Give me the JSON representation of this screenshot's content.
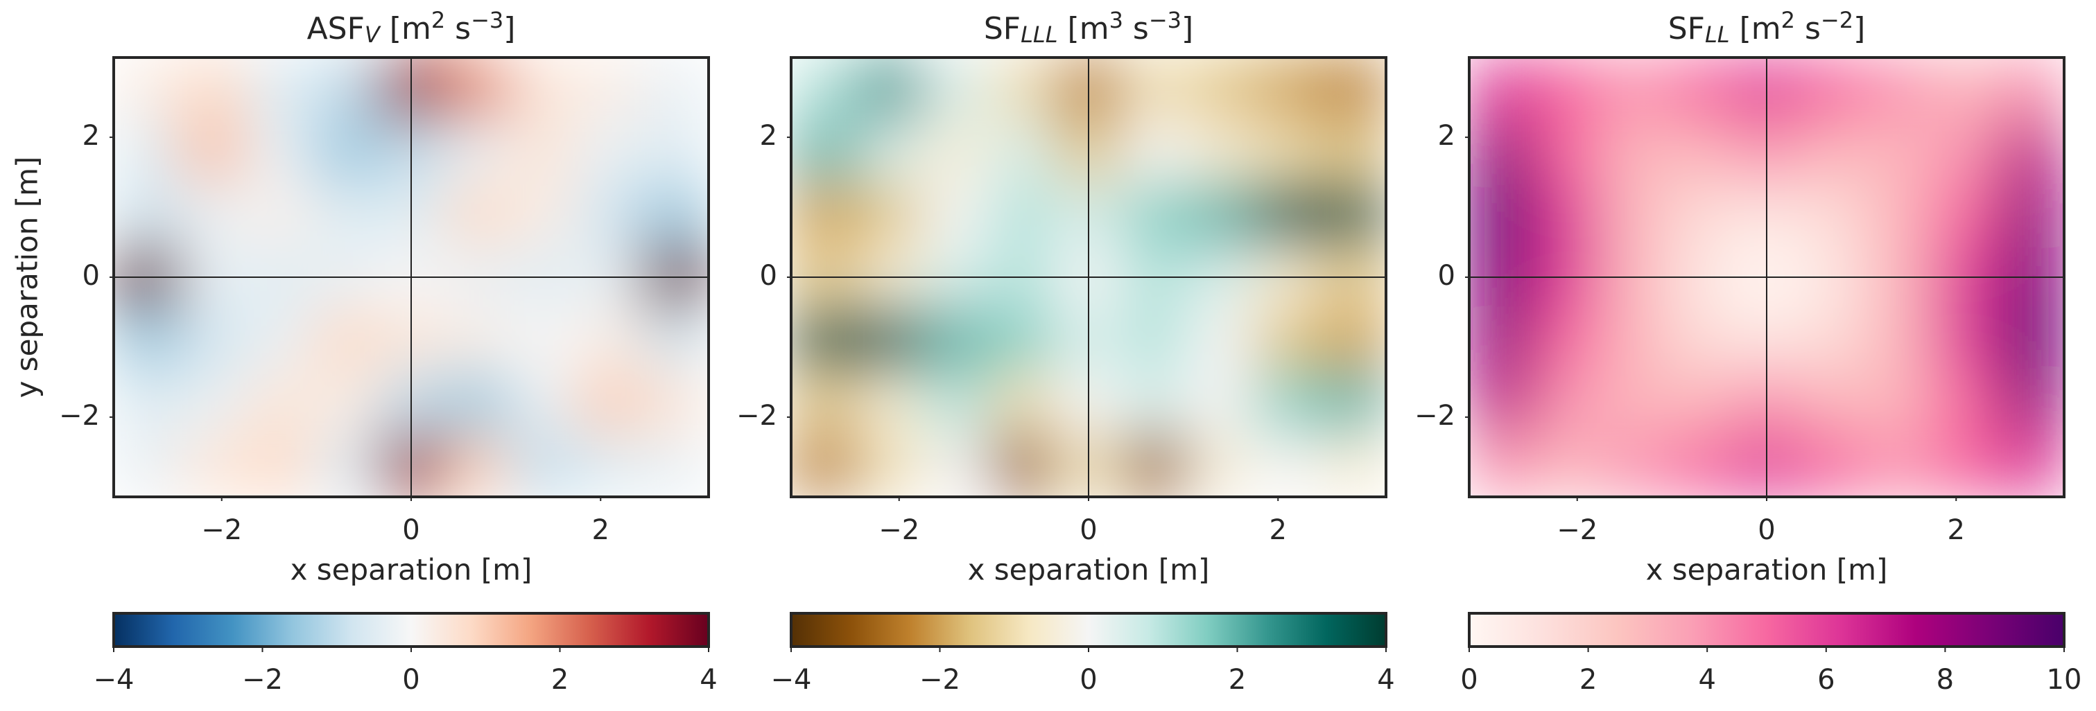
{
  "chart_data": [
    {
      "type": "heatmap",
      "title": [
        {
          "text": "ASF"
        },
        {
          "text": "V",
          "sub": true
        },
        {
          "text": " [m"
        },
        {
          "text": "2",
          "sup": true
        },
        {
          "text": " s"
        },
        {
          "text": "−3",
          "sup": true
        },
        {
          "text": "]"
        }
      ],
      "xlabel": "x separation [m]",
      "ylabel": "y separation [m]",
      "xlim": [
        -3.14,
        3.14
      ],
      "ylim": [
        -3.14,
        3.14
      ],
      "xticks": [
        {
          "value": -2,
          "label": "−2"
        },
        0,
        2
      ],
      "yticks": [
        {
          "value": -2,
          "label": "−2"
        },
        0,
        2
      ],
      "vline": 0,
      "hline": 0,
      "x": [
        -2.79,
        -2.09,
        -1.4,
        -0.7,
        0,
        0.7,
        1.4,
        2.09,
        2.79
      ],
      "y": [
        2.69,
        1.79,
        0.9,
        0,
        -0.9,
        -1.79,
        -2.69
      ],
      "z": [
        [
          0.3,
          0.8,
          -0.5,
          -1.0,
          3.5,
          2.0,
          0.5,
          0.3,
          -0.3
        ],
        [
          -0.5,
          1.2,
          -0.3,
          -1.5,
          -1.0,
          -0.3,
          0.5,
          -0.3,
          -0.5
        ],
        [
          -0.8,
          -0.3,
          0.2,
          -0.5,
          -0.5,
          0.8,
          0.3,
          -0.8,
          -1.5
        ],
        [
          4,
          -0.3,
          -0.5,
          -0.3,
          0,
          -0.3,
          -0.5,
          -0.3,
          4
        ],
        [
          -1.5,
          -0.8,
          -0.3,
          0.8,
          0.5,
          0.3,
          0,
          0.3,
          -0.8
        ],
        [
          -0.5,
          -0.3,
          0.5,
          0.3,
          -1.0,
          -1.5,
          -0.3,
          1.0,
          0.5
        ],
        [
          -0.3,
          0.5,
          0.8,
          -0.5,
          3.5,
          1.0,
          -1.0,
          -0.5,
          -0.3
        ]
      ],
      "clim": [
        -4,
        4
      ],
      "cticks": [
        {
          "value": -4,
          "label": "−4"
        },
        {
          "value": -2,
          "label": "−2"
        },
        0,
        2,
        4
      ],
      "colormap": [
        "#053061",
        "#2166ac",
        "#4393c3",
        "#92c5de",
        "#d1e5f0",
        "#f7f7f7",
        "#fddbc7",
        "#f4a582",
        "#d6604d",
        "#b2182b",
        "#67001f"
      ]
    },
    {
      "type": "heatmap",
      "title": [
        {
          "text": "SF"
        },
        {
          "text": "LLL",
          "sub": true
        },
        {
          "text": " [m"
        },
        {
          "text": "3",
          "sup": true
        },
        {
          "text": " s"
        },
        {
          "text": "−3",
          "sup": true
        },
        {
          "text": "]"
        }
      ],
      "xlabel": "x separation [m]",
      "xlim": [
        -3.14,
        3.14
      ],
      "ylim": [
        -3.14,
        3.14
      ],
      "xticks": [
        {
          "value": -2,
          "label": "−2"
        },
        0,
        2
      ],
      "yticks": [
        {
          "value": -2,
          "label": "−2"
        },
        0,
        2
      ],
      "vline": 0,
      "hline": 0,
      "x": [
        -2.79,
        -2.09,
        -1.4,
        -0.7,
        0,
        0.7,
        1.4,
        2.09,
        2.79
      ],
      "y": [
        2.69,
        1.79,
        0.9,
        0,
        -0.9,
        -1.79,
        -2.69
      ],
      "z": [
        [
          1,
          2.5,
          0.5,
          -1,
          -2.5,
          -1,
          -1.5,
          -2,
          -2.5
        ],
        [
          2,
          0.5,
          -0.5,
          0.5,
          -1.5,
          0,
          -0.5,
          -1,
          -1.5
        ],
        [
          -2,
          -1.5,
          0,
          1,
          0.5,
          1.5,
          2,
          3.5,
          3.5
        ],
        [
          -1.5,
          -0.5,
          0.5,
          1,
          0,
          1,
          0.5,
          -0.5,
          -1.5
        ],
        [
          3.5,
          3.5,
          2,
          1.5,
          0.5,
          1,
          0,
          -1.5,
          -2
        ],
        [
          -1.5,
          -0.5,
          1,
          -1,
          0,
          0.5,
          0,
          1.5,
          2
        ],
        [
          -2.5,
          -1,
          0,
          -3,
          -1,
          -3,
          -0.5,
          0,
          -0.5
        ]
      ],
      "clim": [
        -4,
        4
      ],
      "cticks": [
        {
          "value": -4,
          "label": "−4"
        },
        {
          "value": -2,
          "label": "−2"
        },
        0,
        2,
        4
      ],
      "colormap": [
        "#543005",
        "#8c510a",
        "#bf812d",
        "#dfc27d",
        "#f6e8c3",
        "#f5f5f5",
        "#c7eae5",
        "#80cdc1",
        "#35978f",
        "#01665e",
        "#003c30"
      ]
    },
    {
      "type": "heatmap",
      "title": [
        {
          "text": "SF"
        },
        {
          "text": "LL",
          "sub": true
        },
        {
          "text": " [m"
        },
        {
          "text": "2",
          "sup": true
        },
        {
          "text": " s"
        },
        {
          "text": "−2",
          "sup": true
        },
        {
          "text": "]"
        }
      ],
      "xlabel": "x separation [m]",
      "xlim": [
        -3.14,
        3.14
      ],
      "ylim": [
        -3.14,
        3.14
      ],
      "xticks": [
        {
          "value": -2,
          "label": "−2"
        },
        0,
        2
      ],
      "yticks": [
        {
          "value": -2,
          "label": "−2"
        },
        0,
        2
      ],
      "vline": 0,
      "hline": 0,
      "x": [
        -2.79,
        -2.09,
        -1.4,
        -0.7,
        0,
        0.7,
        1.4,
        2.09,
        2.79
      ],
      "y": [
        2.69,
        1.79,
        0.9,
        0,
        -0.9,
        -1.79,
        -2.69
      ],
      "z": [
        [
          6,
          5,
          4,
          5,
          6,
          5,
          4,
          3,
          4
        ],
        [
          8,
          5,
          3,
          3,
          4,
          3,
          3,
          4,
          7
        ],
        [
          9,
          6,
          3,
          1.5,
          1,
          1.5,
          3,
          5,
          8
        ],
        [
          8.5,
          6,
          3,
          1,
          0,
          1,
          3,
          6,
          8.5
        ],
        [
          8,
          5,
          3,
          1.5,
          1,
          1.5,
          3,
          6,
          9
        ],
        [
          7,
          4,
          3,
          3,
          4,
          3,
          3,
          5,
          8
        ],
        [
          4,
          3,
          4,
          5,
          6,
          5,
          4,
          5,
          6
        ]
      ],
      "clim": [
        0,
        10
      ],
      "cticks": [
        0,
        2,
        4,
        6,
        8,
        10
      ],
      "colormap": [
        "#fff7f3",
        "#fde0dd",
        "#fcc5c0",
        "#fa9fb5",
        "#f768a1",
        "#dd3497",
        "#ae017e",
        "#7a0177",
        "#49006a"
      ]
    }
  ]
}
